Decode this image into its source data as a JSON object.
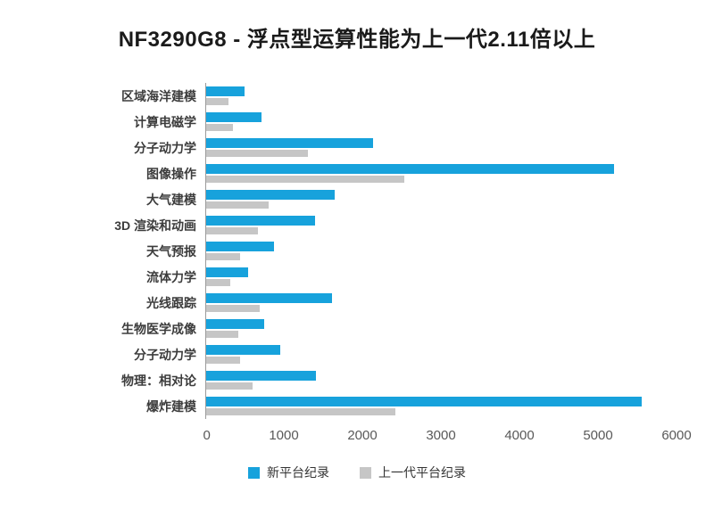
{
  "chart_data": {
    "type": "bar",
    "orientation": "horizontal",
    "title": "NF3290G8 - 浮点型运算性能为上一代2.11倍以上",
    "categories": [
      "区域海洋建模",
      "计算电磁学",
      "分子动力学",
      "图像操作",
      "大气建模",
      "3D 渲染和动画",
      "天气预报",
      "流体力学",
      "光线跟踪",
      "生物医学成像",
      "分子动力学",
      "物理：相对论",
      "爆炸建模"
    ],
    "series": [
      {
        "name": "新平台纪录",
        "color": "#17a2dc",
        "values": [
          490,
          710,
          2130,
          5200,
          1640,
          1390,
          860,
          530,
          1600,
          740,
          940,
          1400,
          5560
        ]
      },
      {
        "name": "上一代平台纪录",
        "color": "#c6c6c6",
        "values": [
          280,
          340,
          1300,
          2530,
          800,
          660,
          430,
          310,
          680,
          410,
          430,
          590,
          2410
        ]
      }
    ],
    "xlabel": "",
    "ylabel": "",
    "xlim": [
      0,
      6000
    ],
    "xticks": [
      0,
      1000,
      2000,
      3000,
      4000,
      5000,
      6000
    ],
    "grid": false,
    "legend_position": "bottom"
  }
}
